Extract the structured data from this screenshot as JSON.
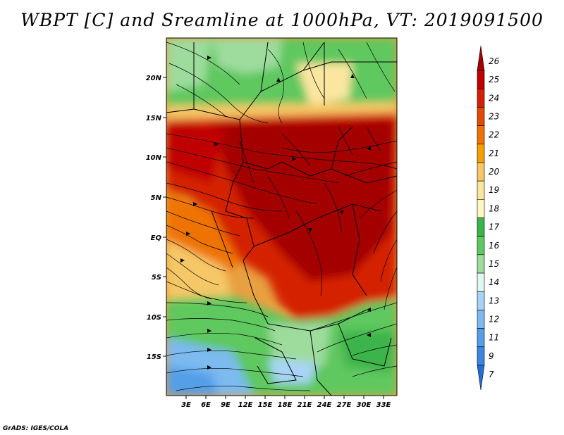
{
  "title": "WBPT [C] and Sreamline at 1000hPa, VT: 2019091500",
  "footer": "GrADS: IGES/COLA",
  "map": {
    "lat_labels": [
      "20N",
      "15N",
      "10N",
      "5N",
      "EQ",
      "5S",
      "10S",
      "15S"
    ],
    "lon_labels": [
      "3E",
      "6E",
      "9E",
      "12E",
      "15E",
      "18E",
      "21E",
      "24E",
      "27E",
      "30E",
      "33E"
    ]
  },
  "colorbar": {
    "labels": [
      "26",
      "25",
      "24",
      "23",
      "22",
      "21",
      "20",
      "19",
      "18",
      "17",
      "16",
      "15",
      "14",
      "13",
      "12",
      "11",
      "9",
      "7"
    ],
    "colors": [
      "#a50000",
      "#c00000",
      "#d42000",
      "#e34a00",
      "#ef7300",
      "#f5a000",
      "#f5c766",
      "#fbe6a0",
      "#fff7c2",
      "#3cb44b",
      "#5fc85f",
      "#9ddc9d",
      "#e0f7f2",
      "#a7d4f5",
      "#7cbaf0",
      "#559fe8",
      "#3a86e0",
      "#236fd8"
    ]
  }
}
